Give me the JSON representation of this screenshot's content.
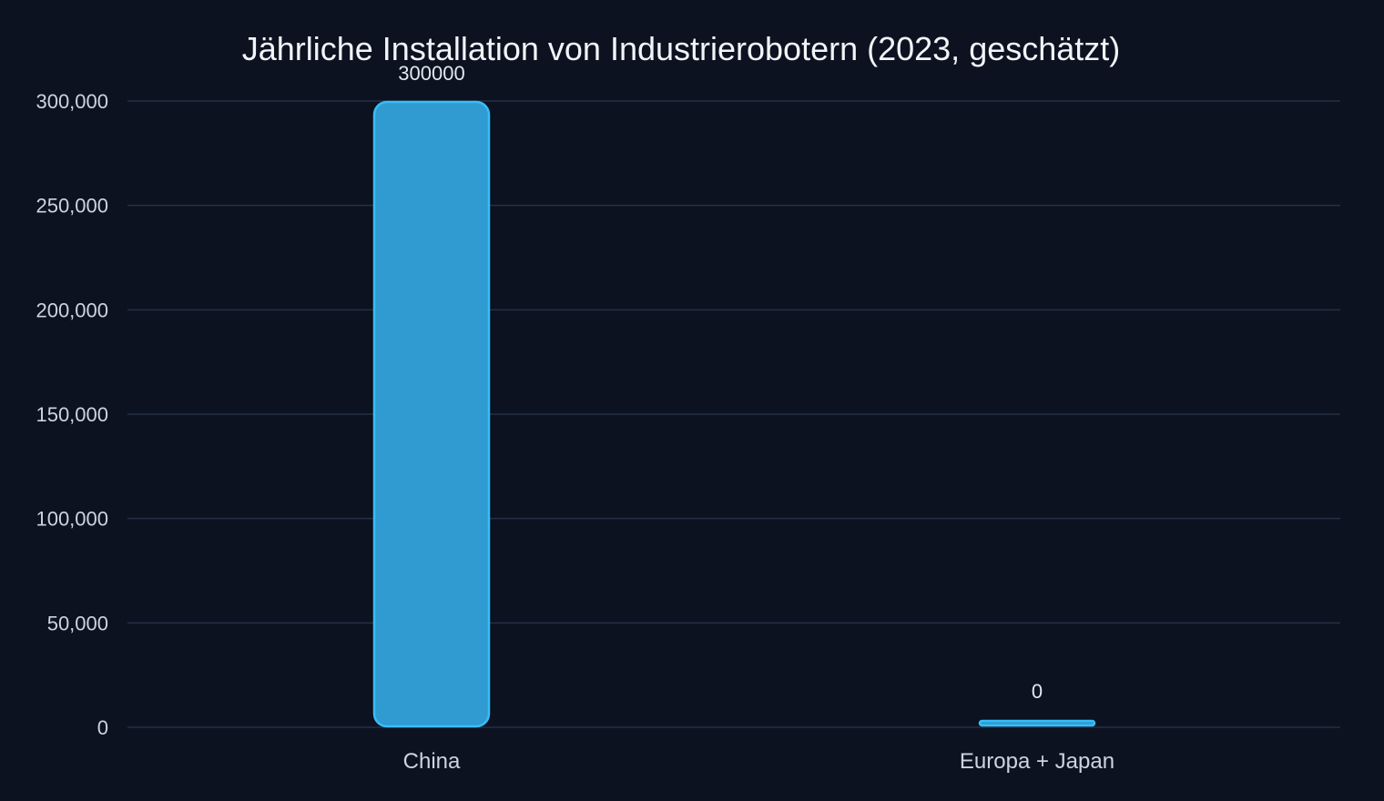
{
  "chart_data": {
    "type": "bar",
    "title": "Jährliche Installation von Industrierobotern (2023, geschätzt)",
    "xlabel": "",
    "ylabel": "",
    "categories": [
      "China",
      "Europa + Japan"
    ],
    "values": [
      300000,
      0
    ],
    "data_labels": [
      "300000",
      "0"
    ],
    "ylim": [
      0,
      300000
    ],
    "yticks": [
      0,
      50000,
      100000,
      150000,
      200000,
      250000,
      300000
    ],
    "ytick_labels": [
      "0",
      "50,000",
      "100,000",
      "150,000",
      "200,000",
      "250,000",
      "300,000"
    ],
    "grid": true,
    "legend": "none",
    "colors": {
      "background": "#0c1220",
      "bar_fill": "#2f9bd1",
      "bar_stroke": "#38bdf8",
      "grid": "#243044",
      "title": "#f1f5f9",
      "tick": "#cbd5e1"
    }
  }
}
